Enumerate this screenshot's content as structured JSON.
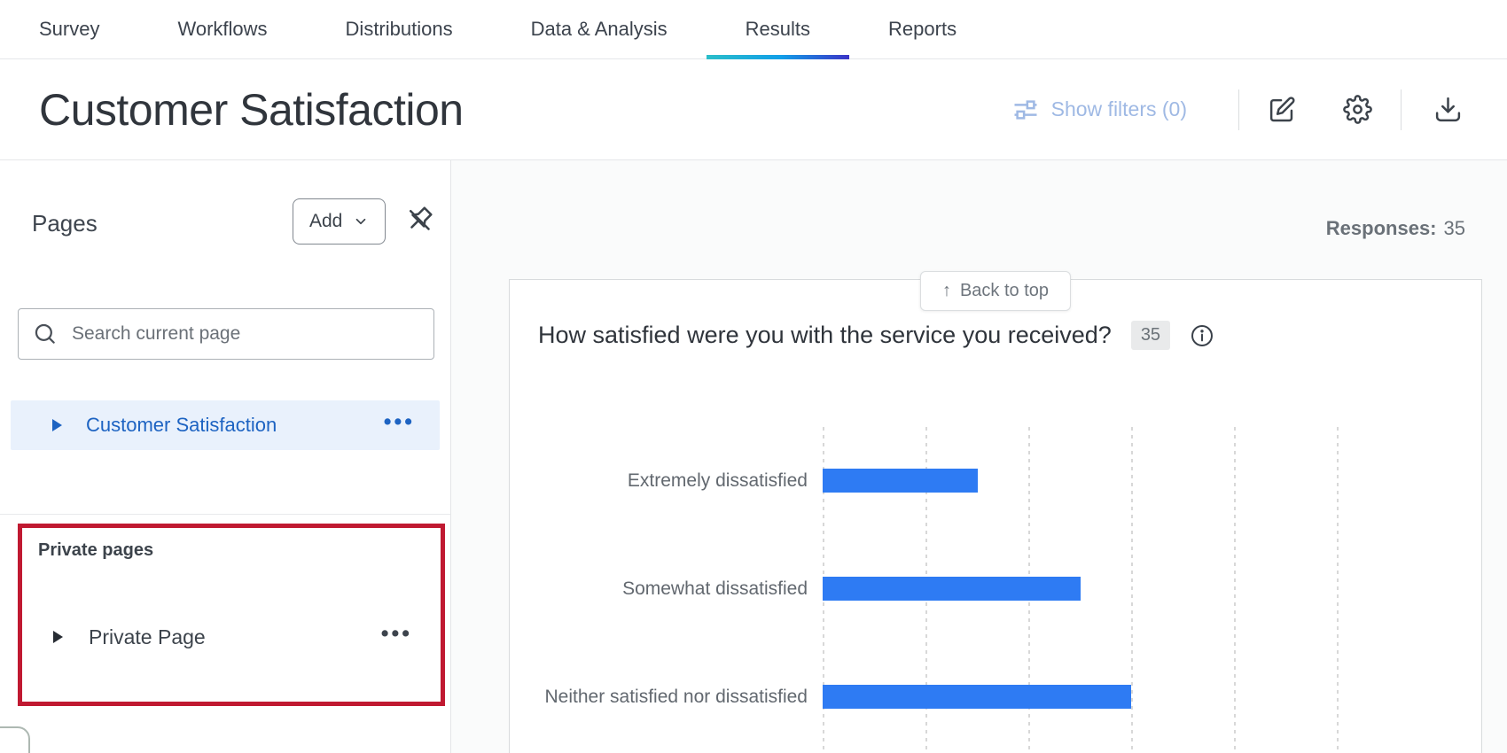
{
  "nav": {
    "items": [
      "Survey",
      "Workflows",
      "Distributions",
      "Data & Analysis",
      "Results",
      "Reports"
    ],
    "active_item": "Results",
    "active_underline_gradient": [
      "#2BBEC9",
      "#119FE8",
      "#3B34C7"
    ]
  },
  "header": {
    "title": "Customer Satisfaction",
    "show_filters_label": "Show filters (0)",
    "show_filters_color": "#9FB9E4",
    "icons": [
      "sliders-filter-icon",
      "edit-icon",
      "settings-gear-icon",
      "download-icon"
    ]
  },
  "sidebar": {
    "heading": "Pages",
    "add_button_label": "Add",
    "pin_icon": "unpin-icon",
    "search_placeholder": "Search current page",
    "pages": [
      {
        "label": "Customer Satisfaction",
        "selected": true,
        "color": "#1D63C2"
      }
    ],
    "private_section": {
      "heading": "Private pages",
      "pages": [
        {
          "label": "Private Page"
        }
      ],
      "annotation_box_color": "#C01931"
    }
  },
  "main": {
    "responses_label": "Responses:",
    "responses_value": "35",
    "back_to_top_arrow": "↑",
    "back_to_top_label": "Back to top",
    "question": {
      "title": "How satisfied were you with the service you received?",
      "count_badge": "35",
      "info_icon": "info-circle-icon"
    }
  },
  "chart_data": {
    "type": "bar",
    "orientation": "horizontal",
    "title": "How satisfied were you with the service you received?",
    "total_responses": 35,
    "categories": [
      "Extremely dissatisfied",
      "Somewhat dissatisfied",
      "Neither satisfied nor dissatisfied"
    ],
    "values_gridline_units": [
      1.51,
      2.51,
      3.0
    ],
    "estimated_counts": [
      3,
      5,
      6
    ],
    "bar_color": "#2E7BF3",
    "gridlines": {
      "style": "dotted",
      "orientation": "vertical",
      "count": 6,
      "px_spacing": 116
    },
    "axis_tick_labels_visible": false,
    "legend": "none",
    "clipped_at_viewport_bottom": true
  }
}
